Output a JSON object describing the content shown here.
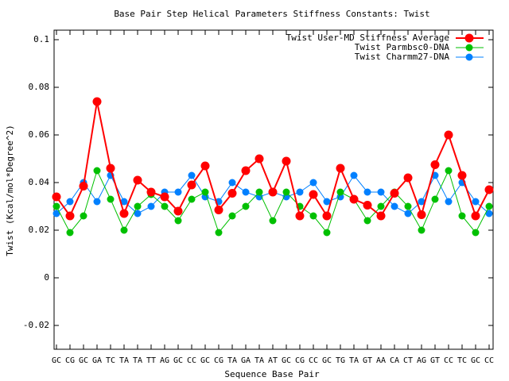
{
  "chart_data": {
    "type": "line",
    "title": "Base Pair Step Helical Parameters Stiffness Constants: Twist",
    "x_label": "Sequence Base Pair",
    "y_label": "Twist (Kcal/mol*Degree^2)",
    "categories": [
      "GC",
      "CG",
      "GC",
      "GA",
      "TC",
      "TA",
      "TA",
      "TT",
      "AG",
      "GC",
      "CC",
      "GC",
      "CG",
      "TA",
      "GA",
      "TA",
      "AT",
      "GC",
      "CG",
      "CC",
      "GC",
      "TG",
      "TA",
      "GT",
      "AA",
      "CA",
      "CT",
      "AG",
      "GT",
      "CC",
      "TC",
      "GC",
      "CC"
    ],
    "ylim": [
      -0.03,
      0.104
    ],
    "yticks": [
      -0.02,
      0,
      0.02,
      0.04,
      0.06,
      0.08,
      0.1
    ],
    "legend": "top-right",
    "series": [
      {
        "name": "Twist User-MD Stiffness Average",
        "color": "#ff0000",
        "values": [
          0.034,
          0.026,
          0.0385,
          0.074,
          0.046,
          0.027,
          0.041,
          0.036,
          0.034,
          0.028,
          0.039,
          0.047,
          0.0285,
          0.0355,
          0.045,
          0.05,
          0.036,
          0.049,
          0.026,
          0.035,
          0.026,
          0.046,
          0.033,
          0.0305,
          0.026,
          0.0355,
          0.042,
          0.0265,
          0.0475,
          0.06,
          0.043,
          0.026,
          0.037
        ]
      },
      {
        "name": "Twist Parmbsc0-DNA",
        "color": "#00c000",
        "values": [
          0.03,
          0.019,
          0.026,
          0.045,
          0.033,
          0.02,
          0.03,
          0.035,
          0.03,
          0.024,
          0.033,
          0.036,
          0.019,
          0.026,
          0.03,
          0.036,
          0.024,
          0.036,
          0.03,
          0.026,
          0.019,
          0.036,
          0.033,
          0.024,
          0.03,
          0.036,
          0.03,
          0.02,
          0.033,
          0.045,
          0.026,
          0.019,
          0.03
        ]
      },
      {
        "name": "Twist Charmm27-DNA",
        "color": "#0080ff",
        "values": [
          0.027,
          0.032,
          0.04,
          0.032,
          0.043,
          0.032,
          0.027,
          0.03,
          0.036,
          0.036,
          0.043,
          0.034,
          0.032,
          0.04,
          0.036,
          0.034,
          0.036,
          0.034,
          0.036,
          0.04,
          0.032,
          0.034,
          0.043,
          0.036,
          0.036,
          0.03,
          0.027,
          0.032,
          0.043,
          0.032,
          0.04,
          0.032,
          0.027
        ]
      }
    ]
  }
}
